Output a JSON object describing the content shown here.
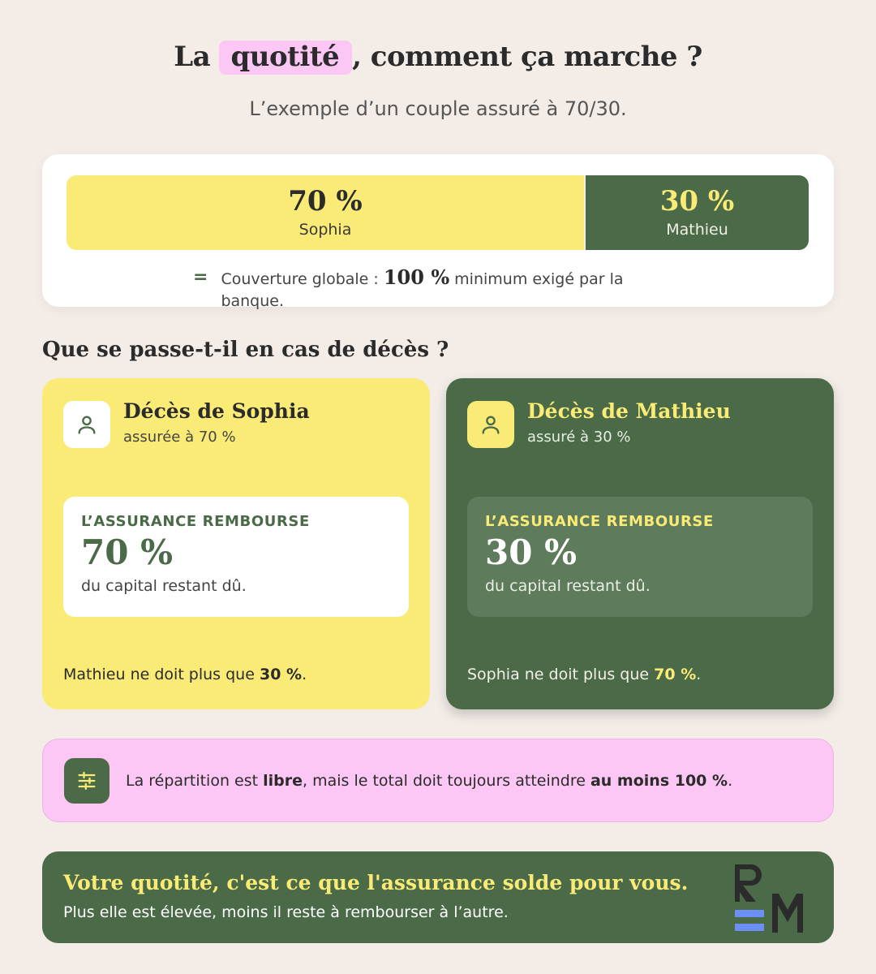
{
  "header": {
    "title_before": "La",
    "title_highlight": "quotité",
    "title_after": ", comment ça marche ?",
    "subtitle": "L’exemple d’un couple assuré à 70/30."
  },
  "split": {
    "a_pct": "70 %",
    "a_name": "Sophia",
    "a_share": 0.7,
    "b_pct": "30 %",
    "b_name": "Mathieu",
    "b_share": 0.3,
    "coverage_prefix": "Couverture globale :",
    "coverage_value": "100 %",
    "coverage_suffix": "minimum exigé par la banque."
  },
  "section": {
    "title": "Que se passe-t-il en cas de décès ?"
  },
  "cards": {
    "sophia": {
      "title": "Décès de Sophia",
      "subtitle": "assurée à 70 %",
      "label": "L’ASSURANCE REMBOURSE",
      "pct": "70 %",
      "desc": "du capital restant dû.",
      "foot_prefix": "Mathieu ne doit plus que",
      "foot_value": "30 %",
      "foot_suffix": "."
    },
    "mathieu": {
      "title": "Décès de Mathieu",
      "subtitle": "assuré à 30 %",
      "label": "L’ASSURANCE REMBOURSE",
      "pct": "30 %",
      "desc": "du capital restant dû.",
      "foot_prefix": "Sophia ne doit plus que",
      "foot_value": "70 %",
      "foot_suffix": "."
    }
  },
  "info": {
    "icon": "sliders-icon",
    "t1": "La répartition est",
    "b1": "libre",
    "t2": ", mais le total doit toujours atteindre",
    "b2": "au moins 100 %",
    "t3": "."
  },
  "banner": {
    "title": "Votre quotité, c'est ce que l'assurance solde pour vous.",
    "subtitle": "Plus elle est élevée, moins il reste à rembourser à l’autre.",
    "logo_text": "RM"
  },
  "colors": {
    "background": "#f3ece7",
    "yellow": "#f9eb75",
    "green": "#4a6a48",
    "pink": "#fcc7f4",
    "logo_blue": "#6b8ff5"
  }
}
